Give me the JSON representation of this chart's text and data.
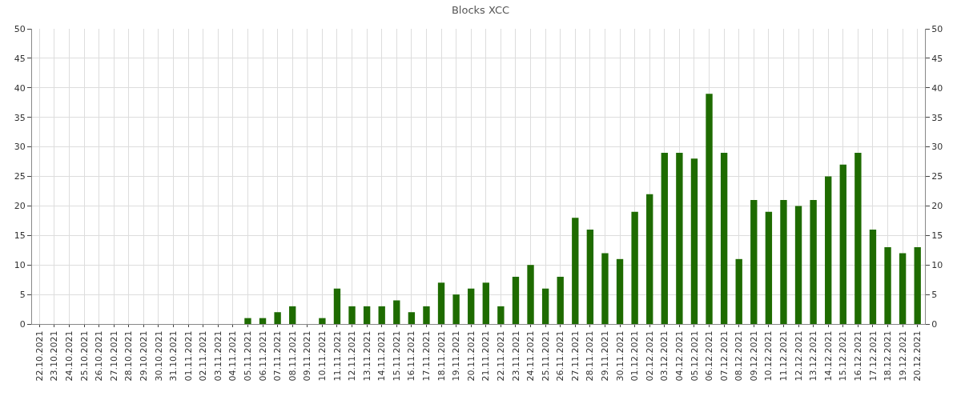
{
  "chart_data": {
    "type": "bar",
    "title": "Blocks XCC",
    "categories": [
      "22.10.2021",
      "23.10.2021",
      "24.10.2021",
      "25.10.2021",
      "26.10.2021",
      "27.10.2021",
      "28.10.2021",
      "29.10.2021",
      "30.10.2021",
      "31.10.2021",
      "01.11.2021",
      "02.11.2021",
      "03.11.2021",
      "04.11.2021",
      "05.11.2021",
      "06.11.2021",
      "07.11.2021",
      "08.11.2021",
      "09.11.2021",
      "10.11.2021",
      "11.11.2021",
      "12.11.2021",
      "13.11.2021",
      "14.11.2021",
      "15.11.2021",
      "16.11.2021",
      "17.11.2021",
      "18.11.2021",
      "19.11.2021",
      "20.11.2021",
      "21.11.2021",
      "22.11.2021",
      "23.11.2021",
      "24.11.2021",
      "25.11.2021",
      "26.11.2021",
      "27.11.2021",
      "28.11.2021",
      "29.11.2021",
      "30.11.2021",
      "01.12.2021",
      "02.12.2021",
      "03.12.2021",
      "04.12.2021",
      "05.12.2021",
      "06.12.2021",
      "07.12.2021",
      "08.12.2021",
      "09.12.2021",
      "10.12.2021",
      "11.12.2021",
      "12.12.2021",
      "13.12.2021",
      "14.12.2021",
      "15.12.2021",
      "16.12.2021",
      "17.12.2021",
      "18.12.2021",
      "19.12.2021",
      "20.12.2021"
    ],
    "values": [
      0,
      0,
      0,
      0,
      0,
      0,
      0,
      0,
      0,
      0,
      0,
      0,
      0,
      0,
      1,
      1,
      2,
      3,
      0,
      1,
      6,
      3,
      3,
      3,
      4,
      2,
      3,
      7,
      5,
      6,
      7,
      3,
      8,
      10,
      6,
      8,
      18,
      16,
      12,
      11,
      19,
      22,
      29,
      29,
      28,
      39,
      29,
      11,
      21,
      19,
      21,
      20,
      21,
      25,
      27,
      29,
      16,
      13,
      12,
      13
    ],
    "color": "#1e6b00",
    "ylim": [
      0,
      50
    ],
    "yticks": [
      0,
      5,
      10,
      15,
      20,
      25,
      30,
      35,
      40,
      45,
      50
    ],
    "y2lim": [
      0,
      50
    ],
    "y2ticks": [
      0,
      5,
      10,
      15,
      20,
      25,
      30,
      35,
      40,
      45,
      50
    ],
    "grid": true
  }
}
